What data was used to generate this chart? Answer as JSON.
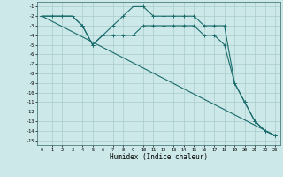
{
  "xlabel": "Humidex (Indice chaleur)",
  "bg_color": "#cce8e8",
  "grid_color": "#aacccc",
  "line_color": "#1a6b6b",
  "xlim": [
    -0.5,
    23.5
  ],
  "ylim": [
    -15.5,
    -0.5
  ],
  "xticks": [
    0,
    1,
    2,
    3,
    4,
    5,
    6,
    7,
    8,
    9,
    10,
    11,
    12,
    13,
    14,
    15,
    16,
    17,
    18,
    19,
    20,
    21,
    22,
    23
  ],
  "yticks": [
    -1,
    -2,
    -3,
    -4,
    -5,
    -6,
    -7,
    -8,
    -9,
    -10,
    -11,
    -12,
    -13,
    -14,
    -15
  ],
  "series": [
    {
      "x": [
        0,
        1,
        2,
        3,
        4,
        5,
        6,
        7,
        8,
        9,
        10,
        11,
        12,
        13,
        14,
        15,
        16,
        17,
        18,
        19,
        20,
        21,
        22,
        23
      ],
      "y": [
        -2,
        -2,
        -2,
        -2,
        -3,
        -5,
        -4,
        -3,
        -2,
        -1,
        -1,
        -2,
        -2,
        -2,
        -2,
        -2,
        -3,
        -3,
        -3,
        -9,
        -11,
        -13,
        -14,
        -14.5
      ]
    },
    {
      "x": [
        0,
        3,
        4,
        5,
        6,
        7,
        8,
        9,
        10,
        11,
        12,
        13,
        14,
        15,
        16,
        17,
        18,
        19,
        20,
        21,
        22,
        23
      ],
      "y": [
        -2,
        -2,
        -3,
        -5,
        -4,
        -4,
        -4,
        -4,
        -3,
        -3,
        -3,
        -3,
        -3,
        -3,
        -4,
        -4,
        -5,
        -9,
        -11,
        -13,
        -14,
        -14.5
      ]
    },
    {
      "x": [
        0,
        23
      ],
      "y": [
        -2,
        -14.5
      ]
    }
  ]
}
